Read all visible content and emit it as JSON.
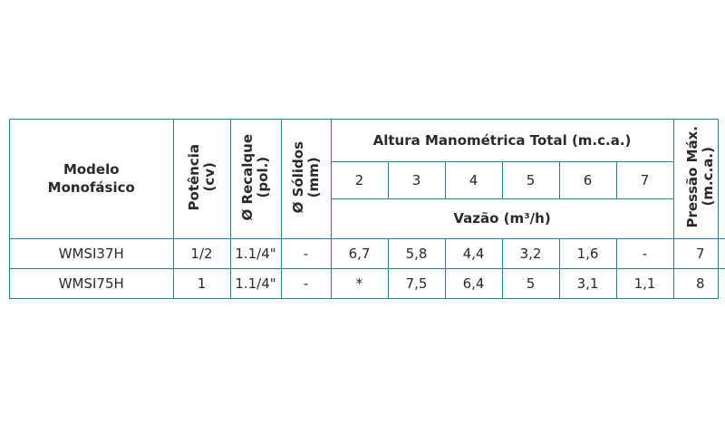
{
  "table": {
    "model_header": "Modelo\nMonofásico",
    "power_header": "Potência\n(cv)",
    "discharge_header": "Ø Recalque\n(pol.)",
    "solids_header": "Ø Sólidos\n(mm)",
    "head_header": "Altura Manométrica Total (m.c.a.)",
    "heights": [
      "2",
      "3",
      "4",
      "5",
      "6",
      "7"
    ],
    "flow_header": "Vazão (m³/h)",
    "pressure_header": "Pressão Máx.\n(m.c.a.)",
    "rows": [
      {
        "model": "WMSI37H",
        "power": "1/2",
        "discharge": "1.1/4\"",
        "solids": "-",
        "flows": [
          "6,7",
          "5,8",
          "4,4",
          "3,2",
          "1,6",
          "-"
        ],
        "pressure": "7"
      },
      {
        "model": "WMSI75H",
        "power": "1",
        "discharge": "1.1/4\"",
        "solids": "-",
        "flows": [
          "*",
          "7,5",
          "6,4",
          "5",
          "3,1",
          "1,1"
        ],
        "pressure": "8"
      }
    ]
  }
}
